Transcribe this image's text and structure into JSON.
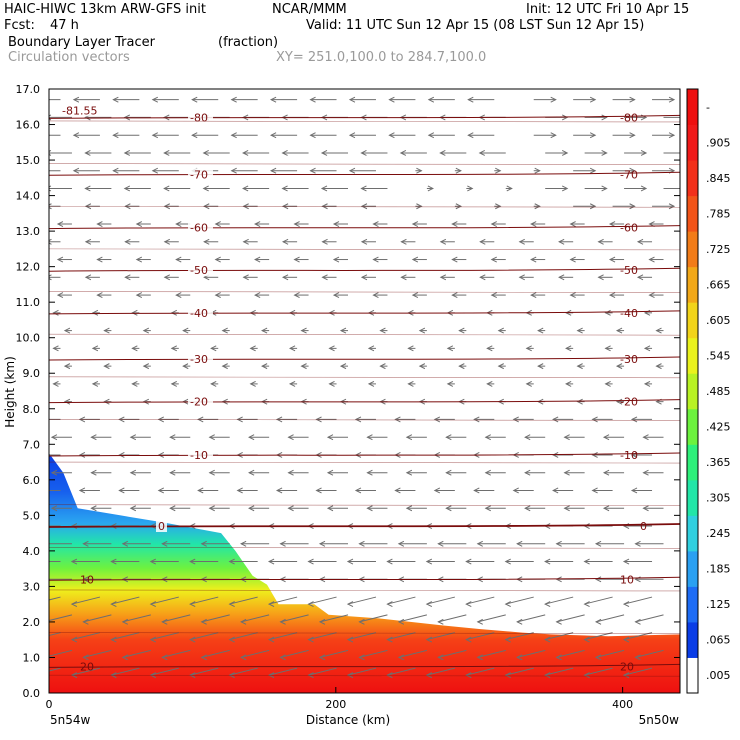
{
  "header": {
    "model": "HAIC-HIWC 13km ARW-GFS init",
    "org": "NCAR/MMM",
    "init": "Init: 12 UTC Fri 10 Apr 15",
    "fcst_label": "Fcst:",
    "fcst_value": "47 h",
    "valid": "Valid: 11 UTC Sun 12 Apr 15 (08 LST Sun 12 Apr 15)",
    "field_name": "Boundary Layer Tracer",
    "field_units": "(fraction)",
    "vector_label": "Circulation vectors",
    "xy_label": "XY= 251.0,100.0 to 284.7,100.0"
  },
  "chart_data": {
    "type": "heatmap",
    "title": "Boundary Layer Tracer",
    "xlabel": "Distance (km)",
    "ylabel": "Height (km)",
    "xlim": [
      0,
      440
    ],
    "ylim": [
      0,
      17
    ],
    "x_ticks": [
      {
        "value": 0,
        "label": "0"
      },
      {
        "value": 200,
        "label": "200"
      },
      {
        "value": 400,
        "label": "400"
      }
    ],
    "y_ticks": [
      "0.0",
      "1.0",
      "2.0",
      "3.0",
      "4.0",
      "5.0",
      "6.0",
      "7.0",
      "8.0",
      "9.0",
      "10.0",
      "11.0",
      "12.0",
      "13.0",
      "14.0",
      "15.0",
      "16.0",
      "17.0"
    ],
    "x_endpoints": {
      "left": "5n54w",
      "right": "5n50w"
    },
    "colorbar": {
      "labels": [
        ".005",
        ".065",
        ".125",
        ".185",
        ".245",
        ".305",
        ".365",
        ".425",
        ".485",
        ".545",
        ".605",
        ".665",
        ".725",
        ".785",
        ".845",
        ".905",
        "-"
      ],
      "colors": [
        "#ffffff",
        "#0a3de6",
        "#1e6cf5",
        "#2aa0f2",
        "#30d0e0",
        "#22e6a8",
        "#2ef07a",
        "#6cf23e",
        "#b8f224",
        "#eaf21c",
        "#f2d41a",
        "#f2a818",
        "#f27c18",
        "#f25418",
        "#f2301a",
        "#f01a1a",
        "#ee1010"
      ]
    },
    "tracer_top_km": [
      {
        "x": 0,
        "top": 6.75
      },
      {
        "x": 10,
        "top": 6.2
      },
      {
        "x": 20,
        "top": 5.2
      },
      {
        "x": 50,
        "top": 5.0
      },
      {
        "x": 80,
        "top": 4.8
      },
      {
        "x": 120,
        "top": 4.5
      },
      {
        "x": 130,
        "top": 4.0
      },
      {
        "x": 142,
        "top": 3.3
      },
      {
        "x": 152,
        "top": 3.05
      },
      {
        "x": 160,
        "top": 2.5
      },
      {
        "x": 185,
        "top": 2.5
      },
      {
        "x": 195,
        "top": 2.2
      },
      {
        "x": 230,
        "top": 2.1
      },
      {
        "x": 275,
        "top": 1.9
      },
      {
        "x": 300,
        "top": 1.8
      },
      {
        "x": 330,
        "top": 1.7
      },
      {
        "x": 350,
        "top": 1.65
      },
      {
        "x": 390,
        "top": 1.6
      },
      {
        "x": 440,
        "top": 1.65
      }
    ],
    "temperature_contours": [
      {
        "value": -81.55,
        "label": "-81.55",
        "height_km": 16.4
      },
      {
        "value": -80,
        "label": "-80",
        "height_km": 16.2
      },
      {
        "value": -70,
        "label": "-70",
        "height_km": 14.6
      },
      {
        "value": -60,
        "label": "-60",
        "height_km": 13.1
      },
      {
        "value": -50,
        "label": "-50",
        "height_km": 11.9
      },
      {
        "value": -40,
        "label": "-40",
        "height_km": 10.7
      },
      {
        "value": -30,
        "label": "-30",
        "height_km": 9.4
      },
      {
        "value": -20,
        "label": "-20",
        "height_km": 8.2
      },
      {
        "value": -10,
        "label": "-10",
        "height_km": 6.7
      },
      {
        "value": 0,
        "label": "0",
        "height_km": 4.7
      },
      {
        "value": 10,
        "label": "10",
        "height_km": 3.2
      },
      {
        "value": 20,
        "label": "20",
        "height_km": 0.75
      }
    ]
  }
}
